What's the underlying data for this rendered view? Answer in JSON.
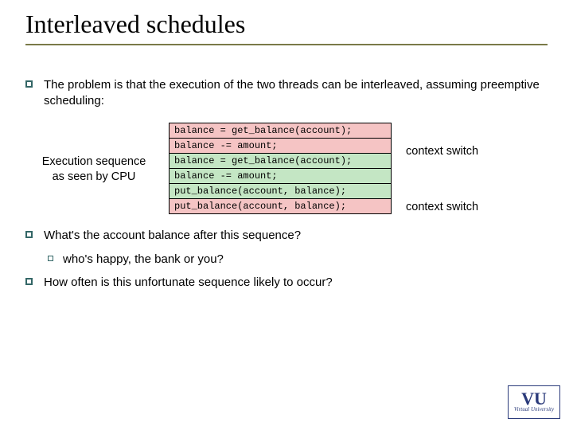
{
  "title": "Interleaved schedules",
  "bullets": {
    "b1": "The problem is that the execution of the two threads can be interleaved, assuming preemptive scheduling:",
    "b2": "What's the account balance after this sequence?",
    "b2sub": "who's happy, the bank or you?",
    "b3": "How often is this unfortunate sequence likely to occur?"
  },
  "diagram": {
    "left_label_line1": "Execution sequence",
    "left_label_line2": "as seen by CPU",
    "code_lines": [
      {
        "text": "balance = get_balance(account);",
        "color": "pink"
      },
      {
        "text": "balance -= amount;",
        "color": "pink"
      },
      {
        "text": "balance = get_balance(account);",
        "color": "green"
      },
      {
        "text": "balance -= amount;",
        "color": "green"
      },
      {
        "text": "put_balance(account, balance);",
        "color": "green"
      },
      {
        "text": "put_balance(account, balance);",
        "color": "pink"
      }
    ],
    "ctx_label": "context switch"
  },
  "colors": {
    "pink_bg": "#f5c4c4",
    "green_bg": "#c4e6c4",
    "bullet_border": "#336666",
    "underline": "#7a7a48",
    "logo_color": "#2a3a7a"
  },
  "logo": {
    "main": "VU",
    "sub": "Virtual University"
  }
}
